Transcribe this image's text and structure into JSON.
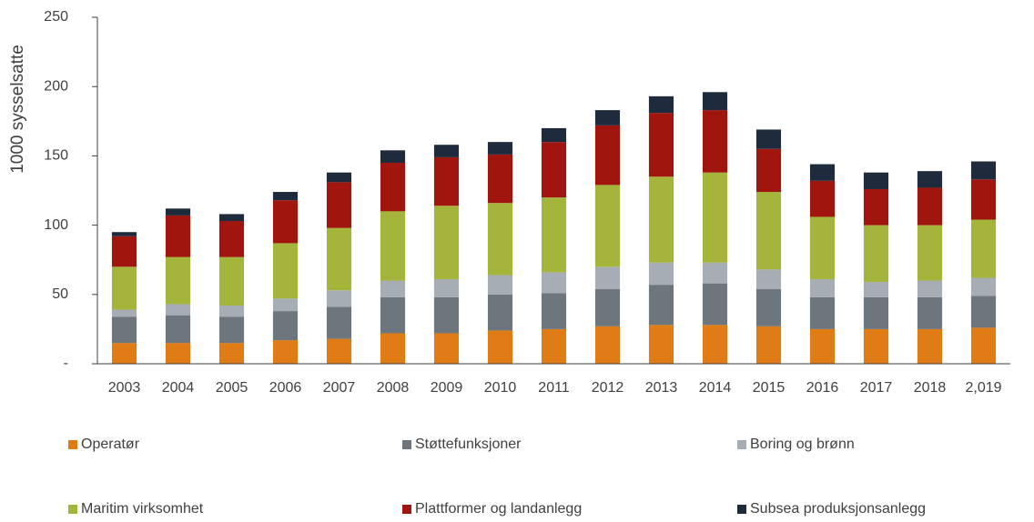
{
  "chart_data": {
    "type": "stacked_bar",
    "y_label": "1000 sysselsatte",
    "categories": [
      "2003",
      "2004",
      "2005",
      "2006",
      "2007",
      "2008",
      "2009",
      "2010",
      "2011",
      "2012",
      "2013",
      "2014",
      "2015",
      "2016",
      "2017",
      "2018",
      "2,019"
    ],
    "series": [
      {
        "name": "Operatør",
        "color": "#e07c16",
        "values": [
          15,
          15,
          15,
          17,
          18,
          22,
          22,
          24,
          25,
          27,
          28,
          28,
          27,
          25,
          25,
          25,
          26
        ]
      },
      {
        "name": "Støttefunksjoner",
        "color": "#6d757d",
        "values": [
          19,
          20,
          19,
          21,
          23,
          26,
          26,
          26,
          26,
          27,
          29,
          30,
          27,
          23,
          23,
          23,
          23
        ]
      },
      {
        "name": "Boring og brønn",
        "color": "#a6adb4",
        "values": [
          5,
          8,
          8,
          9,
          12,
          12,
          13,
          14,
          15,
          16,
          16,
          15,
          14,
          13,
          11,
          12,
          13
        ]
      },
      {
        "name": "Maritim virksomhet",
        "color": "#a5b43b",
        "values": [
          31,
          34,
          35,
          40,
          45,
          50,
          53,
          52,
          54,
          59,
          62,
          65,
          56,
          45,
          41,
          40,
          42
        ]
      },
      {
        "name": "Plattformer og landanlegg",
        "color": "#a1150f",
        "values": [
          22,
          30,
          26,
          31,
          33,
          35,
          35,
          35,
          40,
          43,
          46,
          45,
          31,
          26,
          26,
          27,
          29
        ]
      },
      {
        "name": "Subsea produksjonsanlegg",
        "color": "#1e2b3d",
        "values": [
          3,
          5,
          5,
          6,
          7,
          9,
          9,
          9,
          10,
          11,
          12,
          13,
          14,
          12,
          12,
          12,
          13
        ]
      }
    ],
    "ylim": [
      0,
      250
    ],
    "yticks": [
      {
        "value": 0,
        "label": "-"
      },
      50,
      100,
      150,
      200,
      250
    ]
  }
}
